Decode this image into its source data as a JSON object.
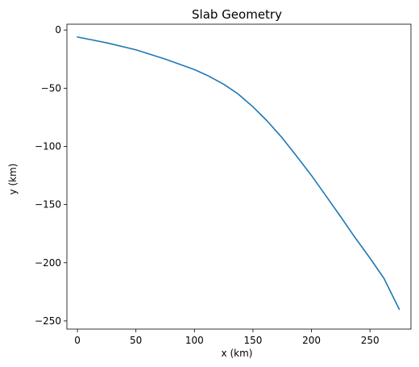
{
  "chart_data": {
    "type": "line",
    "title": "Slab Geometry",
    "xlabel": "x (km)",
    "ylabel": "y (km)",
    "xlim": [
      -9,
      285
    ],
    "ylim": [
      -257,
      5
    ],
    "xticks": [
      0,
      50,
      100,
      150,
      200,
      250
    ],
    "yticks": [
      0,
      -50,
      -100,
      -150,
      -200,
      -250
    ],
    "xtick_labels": [
      "0",
      "50",
      "100",
      "150",
      "200",
      "250"
    ],
    "ytick_labels": [
      "0",
      "−50",
      "−100",
      "−150",
      "−200",
      "−250"
    ],
    "grid": false,
    "series": [
      {
        "color": "#1f77b4",
        "x": [
          0,
          25,
          50,
          75,
          100,
          112,
          125,
          137,
          150,
          162,
          175,
          187,
          200,
          212,
          225,
          237,
          250,
          262,
          275
        ],
        "y": [
          -6,
          -11,
          -17,
          -25,
          -34,
          -39.5,
          -46.6,
          -54.7,
          -66,
          -78,
          -92.7,
          -108,
          -125,
          -142,
          -160.5,
          -178,
          -196,
          -213.5,
          -240
        ]
      }
    ]
  }
}
